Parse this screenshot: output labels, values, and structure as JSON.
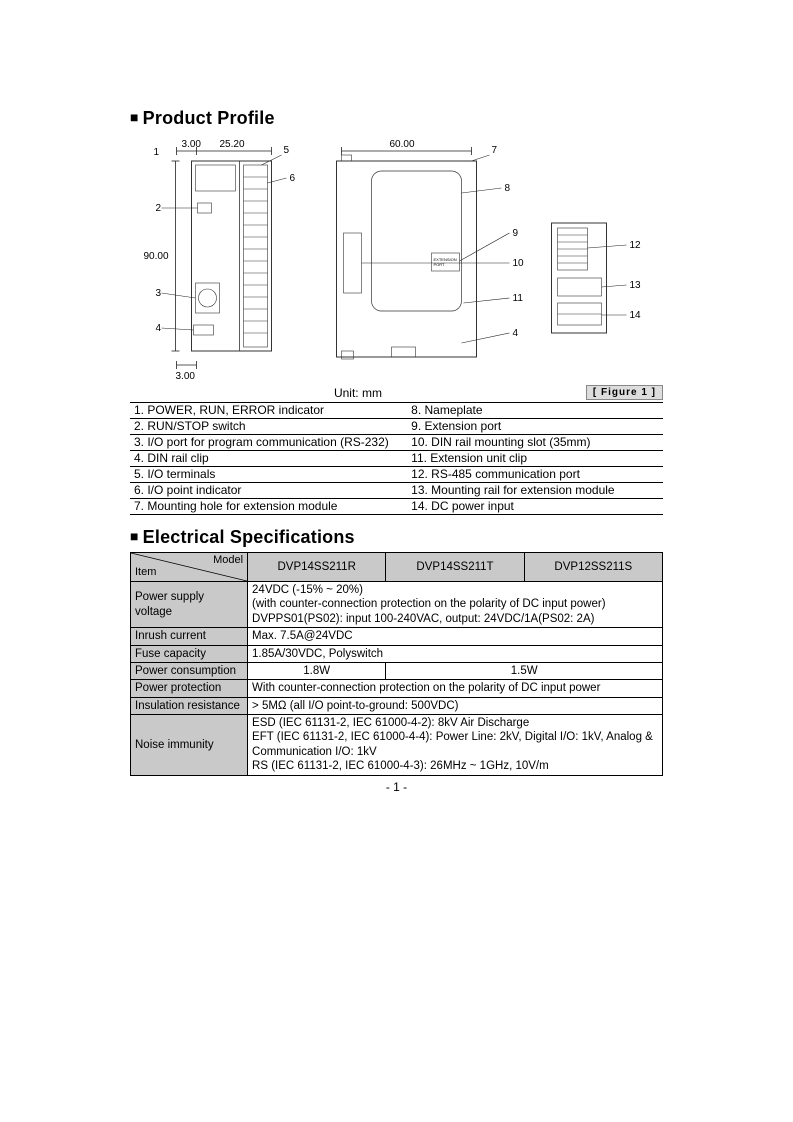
{
  "sections": {
    "profile_title": "Product Profile",
    "elec_title": "Electrical Specifications"
  },
  "diagram": {
    "unit_label": "Unit: mm",
    "figure_label": "[ Figure 1 ]",
    "dims": {
      "top_margin": "3.00",
      "width_small": "25.20",
      "width_large": "60.00",
      "height": "90.00",
      "bottom_margin": "3.00"
    },
    "callouts": [
      "1",
      "2",
      "3",
      "4",
      "5",
      "6",
      "7",
      "8",
      "9",
      "10",
      "11",
      "12",
      "13",
      "14"
    ],
    "port_label": "EXTENSION PORT",
    "colors": {
      "line": "#333333",
      "dimline": "#222222",
      "text": "#000000"
    }
  },
  "parts": [
    {
      "l": "1. POWER, RUN, ERROR indicator",
      "r": "8. Nameplate"
    },
    {
      "l": "2. RUN/STOP switch",
      "r": "9. Extension port"
    },
    {
      "l": "3. I/O port for program communication (RS-232)",
      "r": "10. DIN rail mounting slot (35mm)"
    },
    {
      "l": "4. DIN rail clip",
      "r": "11. Extension unit clip"
    },
    {
      "l": "5. I/O terminals",
      "r": "12. RS-485 communication port"
    },
    {
      "l": "6. I/O point indicator",
      "r": "13. Mounting rail for extension module"
    },
    {
      "l": "7. Mounting hole for extension module",
      "r": "14. DC power input"
    }
  ],
  "spec": {
    "header": {
      "item": "Item",
      "model": "Model",
      "cols": [
        "DVP14SS211R",
        "DVP14SS211T",
        "DVP12SS211S"
      ]
    },
    "rows": {
      "power_supply": {
        "label": "Power supply voltage",
        "value": "24VDC (-15% ~ 20%)\n(with counter-connection protection on the polarity of DC input power)\nDVPPS01(PS02): input 100-240VAC, output: 24VDC/1A(PS02: 2A)"
      },
      "inrush": {
        "label": "Inrush current",
        "value": "Max. 7.5A@24VDC"
      },
      "fuse": {
        "label": "Fuse capacity",
        "value": "1.85A/30VDC, Polyswitch"
      },
      "power_cons": {
        "label": "Power consumption",
        "v1": "1.8W",
        "v2": "1.5W"
      },
      "power_prot": {
        "label": "Power protection",
        "value": "With counter-connection protection on the polarity of DC input power"
      },
      "insulation": {
        "label": "Insulation resistance",
        "value": "> 5MΩ (all I/O point-to-ground: 500VDC)"
      },
      "noise": {
        "label": "Noise immunity",
        "value": "ESD (IEC 61131-2, IEC 61000-4-2): 8kV Air Discharge\nEFT (IEC 61131-2, IEC 61000-4-4): Power Line: 2kV, Digital I/O: 1kV, Analog & Communication I/O: 1kV\nRS (IEC 61131-2, IEC 61000-4-3): 26MHz ~ 1GHz, 10V/m"
      }
    }
  },
  "page_number": "- 1 -",
  "style": {
    "header_bg": "#c9c9c9",
    "border": "#000000",
    "title_fontsize": 18,
    "body_fontsize": 12
  }
}
